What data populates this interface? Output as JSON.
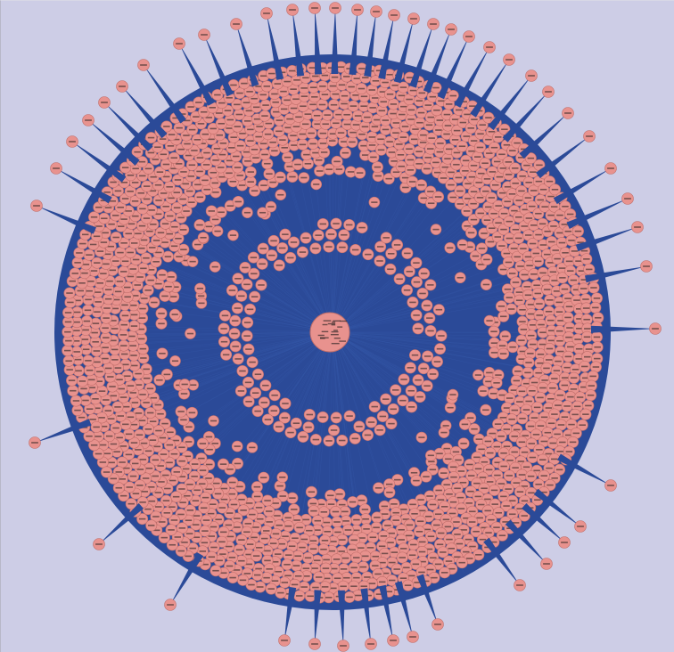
{
  "diagram": {
    "type": "network-graph",
    "layout": "concentric",
    "colors": {
      "background": "#cdcde6",
      "edge": "#2b4a98",
      "node_fill": "#e8928e",
      "node_stroke": "#c06e6a",
      "label": "#1a1a1a"
    },
    "rings": [
      {
        "id": "hub",
        "node_count": 1
      },
      {
        "id": "inner-ring",
        "node_count": 60
      },
      {
        "id": "outer-disk",
        "node_count": 900
      },
      {
        "id": "peripheral",
        "node_count": 64
      }
    ],
    "node_labels_legible": false
  }
}
